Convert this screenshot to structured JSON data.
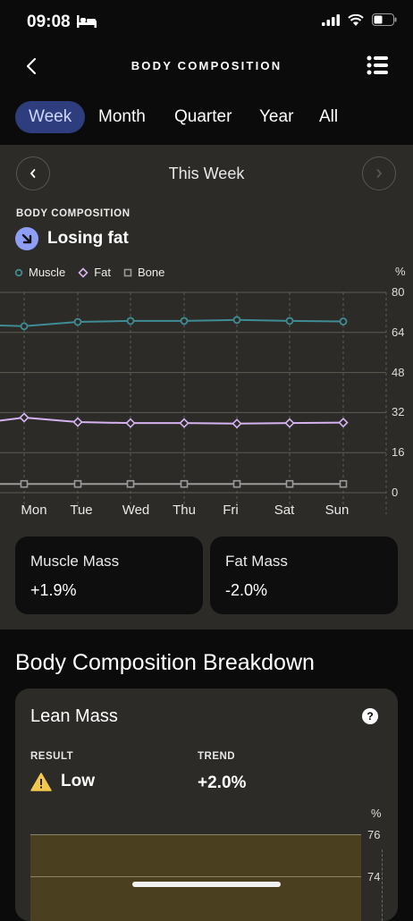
{
  "status_bar": {
    "time": "09:08"
  },
  "nav": {
    "title": "BODY COMPOSITION"
  },
  "tabs": [
    {
      "label": "Week",
      "active": true
    },
    {
      "label": "Month",
      "active": false
    },
    {
      "label": "Quarter",
      "active": false
    },
    {
      "label": "Year",
      "active": false
    },
    {
      "label": "All",
      "active": false
    }
  ],
  "period": {
    "label": "This Week"
  },
  "section": {
    "label": "BODY COMPOSITION",
    "status": "Losing fat"
  },
  "legend": [
    {
      "name": "Muscle",
      "color": "#3f8c95",
      "marker": "circle"
    },
    {
      "name": "Fat",
      "color": "#d6b2f0",
      "marker": "diamond"
    },
    {
      "name": "Bone",
      "color": "#9a9a9a",
      "marker": "square"
    }
  ],
  "chart_data": {
    "type": "line",
    "unit": "%",
    "ylim": [
      0,
      80
    ],
    "yticks": [
      "80",
      "64",
      "48",
      "32",
      "16",
      "0"
    ],
    "categories": [
      "Mon",
      "Tue",
      "Wed",
      "Thu",
      "Fri",
      "Sat",
      "Sun"
    ],
    "series": [
      {
        "name": "Muscle",
        "values": [
          66.5,
          68.2,
          68.6,
          68.6,
          69.0,
          68.6,
          68.4
        ]
      },
      {
        "name": "Fat",
        "values": [
          30.0,
          28.2,
          27.8,
          27.8,
          27.6,
          27.8,
          28.0
        ]
      },
      {
        "name": "Bone",
        "values": [
          3.5,
          3.5,
          3.5,
          3.5,
          3.5,
          3.5,
          3.5
        ]
      }
    ],
    "grid": true
  },
  "stats": {
    "muscle": {
      "title": "Muscle Mass",
      "value": "+1.9%"
    },
    "fat": {
      "title": "Fat Mass",
      "value": "-2.0%"
    }
  },
  "breakdown": {
    "title": "Body Composition Breakdown",
    "lean": {
      "title": "Lean Mass",
      "result_label": "RESULT",
      "result_value": "Low",
      "trend_label": "TREND",
      "trend_value": "+2.0%",
      "unit": "%",
      "yticks": [
        "76",
        "74"
      ]
    }
  }
}
